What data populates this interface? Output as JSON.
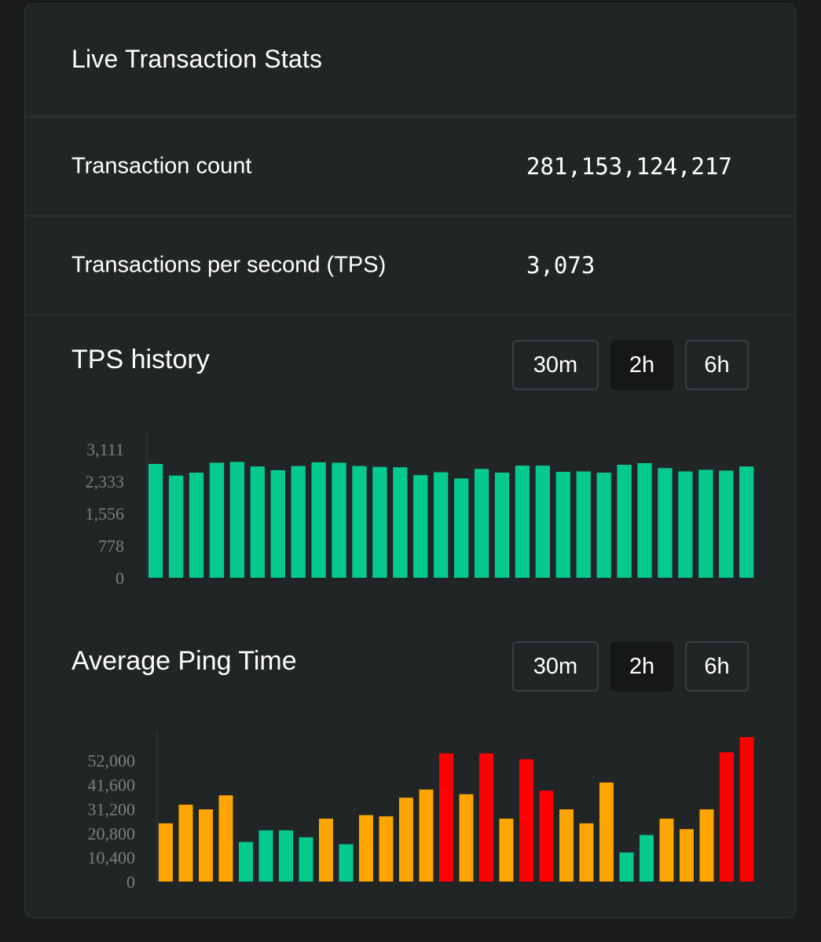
{
  "header": {
    "title": "Live Transaction Stats"
  },
  "stats": [
    {
      "label": "Transaction count",
      "value": "281,153,124,217"
    },
    {
      "label": "Transactions per second (TPS)",
      "value": "3,073"
    }
  ],
  "range_options": [
    "30m",
    "2h",
    "6h"
  ],
  "selected_range": "2h",
  "tps_history": {
    "title": "TPS history",
    "range_buttons": {
      "r30m": "30m",
      "r2h": "2h",
      "r6h": "6h"
    }
  },
  "ping": {
    "title": "Average Ping Time",
    "range_buttons": {
      "r30m": "30m",
      "r2h": "2h",
      "r6h": "6h"
    }
  },
  "colors": {
    "good": "#04cb8d",
    "warn": "#ffa500",
    "bad": "#ff0000",
    "axis_text": "#7e7e7e",
    "axis_line": "#2e3234"
  },
  "chart_data": [
    {
      "type": "bar",
      "name": "tps-history",
      "yticks": [
        "3,111",
        "2,333",
        "1,556",
        "778",
        "0"
      ],
      "ytick_values": [
        3111,
        2333,
        1556,
        778,
        0
      ],
      "ylim": [
        0,
        3111
      ],
      "values": [
        2750,
        2470,
        2540,
        2780,
        2800,
        2690,
        2600,
        2700,
        2790,
        2780,
        2700,
        2680,
        2670,
        2480,
        2550,
        2400,
        2630,
        2540,
        2710,
        2710,
        2560,
        2570,
        2540,
        2730,
        2770,
        2650,
        2570,
        2610,
        2590,
        2690
      ],
      "bar_color": "#04cb8d"
    },
    {
      "type": "bar",
      "name": "average-ping-time",
      "yticks": [
        "52,000",
        "41,600",
        "31,200",
        "20,800",
        "10,400",
        "0"
      ],
      "ytick_values": [
        52000,
        41600,
        31200,
        20800,
        10400,
        0
      ],
      "ylim": [
        0,
        62000
      ],
      "values": [
        25000,
        33000,
        31000,
        37000,
        17000,
        22000,
        22000,
        19000,
        27000,
        16000,
        28500,
        28000,
        36000,
        39500,
        55000,
        37500,
        55000,
        27000,
        52500,
        39000,
        31000,
        25000,
        42500,
        12500,
        20000,
        27000,
        22500,
        31000,
        55500,
        62000
      ],
      "status": [
        "warn",
        "warn",
        "warn",
        "warn",
        "good",
        "good",
        "good",
        "good",
        "warn",
        "good",
        "warn",
        "warn",
        "warn",
        "warn",
        "bad",
        "warn",
        "bad",
        "warn",
        "bad",
        "bad",
        "warn",
        "warn",
        "warn",
        "good",
        "good",
        "warn",
        "warn",
        "warn",
        "bad",
        "bad"
      ]
    }
  ]
}
